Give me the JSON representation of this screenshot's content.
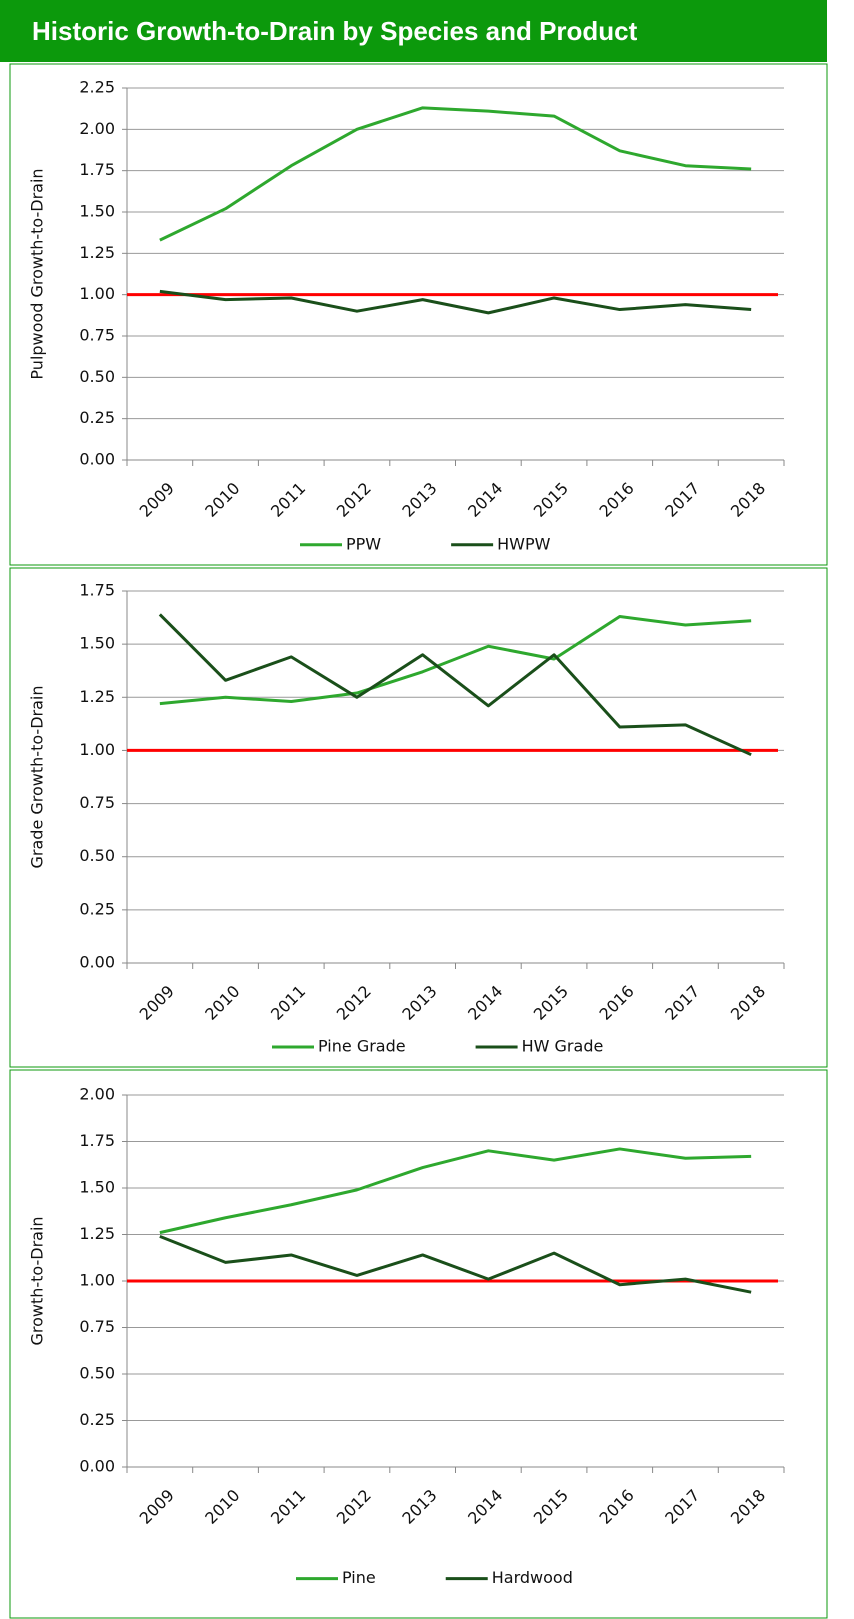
{
  "header": {
    "title": "Historic Growth-to-Drain by Species and Product"
  },
  "chart_data": [
    {
      "type": "line",
      "y_label": "Pulpwood Growth-to-Drain",
      "categories": [
        "2009",
        "2010",
        "2011",
        "2012",
        "2013",
        "2014",
        "2015",
        "2016",
        "2017",
        "2018"
      ],
      "series": [
        {
          "name": "PPW",
          "color": "#2ea82e",
          "values": [
            1.33,
            1.52,
            1.78,
            2.0,
            2.13,
            2.11,
            2.08,
            1.87,
            1.78,
            1.76
          ]
        },
        {
          "name": "HWPW",
          "color": "#1a4f1a",
          "values": [
            1.02,
            0.97,
            0.98,
            0.9,
            0.97,
            0.89,
            0.98,
            0.91,
            0.94,
            0.91
          ]
        }
      ],
      "reference_line": {
        "value": 1,
        "color": "#ff0000"
      },
      "ylim": [
        0,
        2.25
      ],
      "yticks": [
        {
          "value": 0,
          "label": "0.00"
        },
        {
          "value": 0.25,
          "label": "0.25"
        },
        {
          "value": 0.5,
          "label": "0.50"
        },
        {
          "value": 0.75,
          "label": "0.75"
        },
        {
          "value": 1,
          "label": "1.00"
        },
        {
          "value": 1.25,
          "label": "1.25"
        },
        {
          "value": 1.5,
          "label": "1.50"
        },
        {
          "value": 1.75,
          "label": "1.75"
        },
        {
          "value": 2,
          "label": "2.00"
        },
        {
          "value": 2.25,
          "label": "2.25"
        }
      ],
      "grid": true
    },
    {
      "type": "line",
      "y_label": "Grade Growth-to-Drain",
      "categories": [
        "2009",
        "2010",
        "2011",
        "2012",
        "2013",
        "2014",
        "2015",
        "2016",
        "2017",
        "2018"
      ],
      "series": [
        {
          "name": "Pine Grade",
          "color": "#2ea82e",
          "values": [
            1.22,
            1.25,
            1.23,
            1.27,
            1.37,
            1.49,
            1.43,
            1.63,
            1.59,
            1.61
          ]
        },
        {
          "name": "HW Grade",
          "color": "#1a4f1a",
          "values": [
            1.64,
            1.33,
            1.44,
            1.25,
            1.45,
            1.21,
            1.45,
            1.11,
            1.12,
            0.98
          ]
        }
      ],
      "reference_line": {
        "value": 1,
        "color": "#ff0000"
      },
      "ylim": [
        0,
        1.75
      ],
      "yticks": [
        {
          "value": 0,
          "label": "0.00"
        },
        {
          "value": 0.25,
          "label": "0.25"
        },
        {
          "value": 0.5,
          "label": "0.50"
        },
        {
          "value": 0.75,
          "label": "0.75"
        },
        {
          "value": 1,
          "label": "1.00"
        },
        {
          "value": 1.25,
          "label": "1.25"
        },
        {
          "value": 1.5,
          "label": "1.50"
        },
        {
          "value": 1.75,
          "label": "1.75"
        }
      ],
      "grid": true
    },
    {
      "type": "line",
      "y_label": "Growth-to-Drain",
      "categories": [
        "2009",
        "2010",
        "2011",
        "2012",
        "2013",
        "2014",
        "2015",
        "2016",
        "2017",
        "2018"
      ],
      "series": [
        {
          "name": "Pine",
          "color": "#2ea82e",
          "values": [
            1.26,
            1.34,
            1.41,
            1.49,
            1.61,
            1.7,
            1.65,
            1.71,
            1.66,
            1.67
          ]
        },
        {
          "name": "Hardwood",
          "color": "#1a4f1a",
          "values": [
            1.24,
            1.1,
            1.14,
            1.03,
            1.14,
            1.01,
            1.15,
            0.98,
            1.01,
            0.94
          ]
        }
      ],
      "reference_line": {
        "value": 1,
        "color": "#ff0000"
      },
      "ylim": [
        0,
        2
      ],
      "yticks": [
        {
          "value": 0,
          "label": "0.00"
        },
        {
          "value": 0.25,
          "label": "0.25"
        },
        {
          "value": 0.5,
          "label": "0.50"
        },
        {
          "value": 0.75,
          "label": "0.75"
        },
        {
          "value": 1,
          "label": "1.00"
        },
        {
          "value": 1.25,
          "label": "1.25"
        },
        {
          "value": 1.5,
          "label": "1.50"
        },
        {
          "value": 1.75,
          "label": "1.75"
        },
        {
          "value": 2,
          "label": "2.00"
        }
      ],
      "grid": true
    }
  ]
}
